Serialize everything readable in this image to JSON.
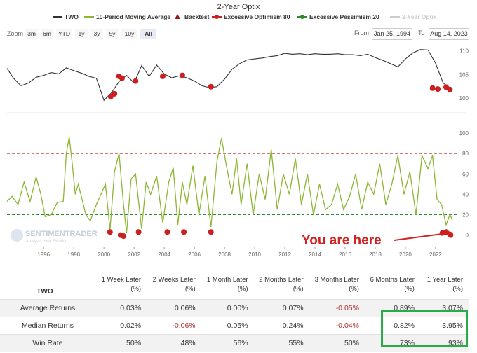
{
  "chart_data": [
    {
      "type": "line",
      "title": "2-Year Optix",
      "legend": [
        {
          "name": "TWO",
          "color": "#333333",
          "symbol": "line"
        },
        {
          "name": "10-Period Moving Average",
          "color": "#8cb634",
          "symbol": "line"
        },
        {
          "name": "Backtest",
          "color": "#8b1a1a",
          "symbol": "triangle"
        },
        {
          "name": "Excessive Optimism 80",
          "color": "#cc1f1f",
          "symbol": "line-dot"
        },
        {
          "name": "Excessive Pessimism 20",
          "color": "#2f8a2f",
          "symbol": "line-dot"
        },
        {
          "name": "2-Year Optix",
          "color": "#cccccc",
          "symbol": "line",
          "disabled": true
        }
      ],
      "legend_position": "top",
      "zoom_label": "Zoom",
      "zoom_buttons": [
        "3m",
        "6m",
        "YTD",
        "1y",
        "3y",
        "5y",
        "10y",
        "All"
      ],
      "zoom_selected": "All",
      "date_from_label": "From",
      "date_from": "Jan 25, 1994",
      "date_to_label": "To",
      "date_to": "Aug 14, 2023",
      "x_ticks": [
        "1996",
        "1998",
        "2000",
        "2002",
        "2004",
        "2006",
        "2008",
        "2010",
        "2012",
        "2014",
        "2016",
        "2018",
        "2020",
        "2022"
      ],
      "x_range": [
        1994.07,
        2023.62
      ],
      "price_panel": {
        "y_ticks": [
          100,
          105,
          110
        ],
        "ylim": [
          97,
          111
        ],
        "series": {
          "name": "TWO",
          "x": [
            1994.07,
            1994.5,
            1995.0,
            1995.5,
            1996.0,
            1996.5,
            1997.0,
            1997.5,
            1998.0,
            1998.5,
            1999.0,
            1999.5,
            2000.0,
            2000.5,
            2001.0,
            2001.5,
            2002.0,
            2002.5,
            2003.0,
            2003.5,
            2004.0,
            2004.5,
            2005.0,
            2005.5,
            2006.0,
            2006.5,
            2007.0,
            2007.5,
            2008.0,
            2008.5,
            2009.0,
            2009.5,
            2010.0,
            2010.5,
            2011.0,
            2011.5,
            2012.0,
            2012.5,
            2013.0,
            2013.5,
            2014.0,
            2014.5,
            2015.0,
            2015.5,
            2016.0,
            2016.5,
            2017.0,
            2017.5,
            2018.0,
            2018.5,
            2019.0,
            2019.5,
            2020.0,
            2020.5,
            2021.0,
            2021.5,
            2022.0,
            2022.5,
            2023.0,
            2023.62
          ],
          "y": [
            106.3,
            104.2,
            102.6,
            103.2,
            104.4,
            104.8,
            105.4,
            105.1,
            106.4,
            105.8,
            105.3,
            104.6,
            104.2,
            99.5,
            101.1,
            103.5,
            104.8,
            103.2,
            106.9,
            104.6,
            107.0,
            105.1,
            104.3,
            104.7,
            104.3,
            103.6,
            102.6,
            102.2,
            102.4,
            104.0,
            106.1,
            107.3,
            108.1,
            108.3,
            108.5,
            108.8,
            109.0,
            109.5,
            109.3,
            109.4,
            109.2,
            109.4,
            109.3,
            109.3,
            109.4,
            109.2,
            109.2,
            109.0,
            109.3,
            108.6,
            108.0,
            107.3,
            106.6,
            108.3,
            109.6,
            110.3,
            110.2,
            107.4,
            103.2,
            101.8
          ]
        },
        "backtest_signals": [
          {
            "x": 2000.95,
            "y": 100.3
          },
          {
            "x": 2001.2,
            "y": 100.9
          },
          {
            "x": 2001.5,
            "y": 104.6
          },
          {
            "x": 2001.7,
            "y": 104.2
          },
          {
            "x": 2002.6,
            "y": 103.6
          },
          {
            "x": 2004.4,
            "y": 104.6
          },
          {
            "x": 2005.7,
            "y": 104.8
          },
          {
            "x": 2007.6,
            "y": 102.4
          },
          {
            "x": 2022.3,
            "y": 102.1
          },
          {
            "x": 2022.65,
            "y": 101.9
          },
          {
            "x": 2023.2,
            "y": 102.3
          },
          {
            "x": 2023.45,
            "y": 101.8
          }
        ]
      },
      "optix_panel": {
        "y_ticks": [
          0,
          20,
          40,
          60,
          80,
          100
        ],
        "y_tick_labels": [
          "0",
          "20",
          "40",
          "60",
          "80",
          "100"
        ],
        "ylim": [
          -3,
          100
        ],
        "upper_threshold": 80,
        "lower_threshold": 20,
        "series": {
          "name": "10-Period Moving Average",
          "x": [
            1994.07,
            1994.4,
            1994.8,
            1995.2,
            1995.6,
            1996.0,
            1996.3,
            1996.6,
            1997.0,
            1997.4,
            1997.8,
            1998.0,
            1998.2,
            1998.4,
            1998.6,
            1998.8,
            1999.0,
            1999.3,
            1999.6,
            2000.0,
            2000.3,
            2000.6,
            2000.9,
            2001.2,
            2001.5,
            2001.8,
            2002.0,
            2002.3,
            2002.6,
            2003.0,
            2003.3,
            2003.6,
            2004.0,
            2004.4,
            2004.8,
            2005.1,
            2005.4,
            2005.7,
            2006.0,
            2006.4,
            2006.8,
            2007.2,
            2007.6,
            2008.0,
            2008.3,
            2008.6,
            2009.0,
            2009.3,
            2009.6,
            2010.0,
            2010.4,
            2010.8,
            2011.2,
            2011.6,
            2012.0,
            2012.4,
            2012.8,
            2013.2,
            2013.6,
            2014.0,
            2014.4,
            2014.8,
            2015.2,
            2015.6,
            2016.0,
            2016.4,
            2016.8,
            2017.2,
            2017.6,
            2018.0,
            2018.4,
            2018.8,
            2019.2,
            2019.6,
            2020.0,
            2020.4,
            2020.8,
            2021.2,
            2021.6,
            2022.0,
            2022.3,
            2022.6,
            2022.9,
            2023.2,
            2023.45,
            2023.62
          ],
          "y": [
            33,
            38,
            30,
            52,
            33,
            57,
            41,
            18,
            20,
            32,
            33,
            80,
            96,
            70,
            40,
            50,
            38,
            20,
            14,
            30,
            40,
            50,
            5,
            62,
            80,
            30,
            2,
            55,
            60,
            6,
            52,
            40,
            58,
            12,
            52,
            66,
            10,
            52,
            30,
            68,
            20,
            58,
            8,
            72,
            95,
            70,
            40,
            75,
            30,
            70,
            20,
            60,
            35,
            84,
            25,
            60,
            40,
            75,
            30,
            60,
            20,
            50,
            25,
            30,
            50,
            25,
            38,
            60,
            25,
            52,
            40,
            70,
            30,
            50,
            78,
            40,
            62,
            20,
            78,
            65,
            78,
            35,
            30,
            10,
            20,
            15
          ]
        },
        "lower_signals": [
          {
            "x": 2000.9,
            "y": 3
          },
          {
            "x": 2001.6,
            "y": 0
          },
          {
            "x": 2001.8,
            "y": -1
          },
          {
            "x": 2002.8,
            "y": 3
          },
          {
            "x": 2004.7,
            "y": 3
          },
          {
            "x": 2005.8,
            "y": 3
          },
          {
            "x": 2007.6,
            "y": 3
          },
          {
            "x": 2022.95,
            "y": 2
          },
          {
            "x": 2023.2,
            "y": 3
          },
          {
            "x": 2023.5,
            "y": 0
          }
        ],
        "annotation": "You are here",
        "watermark": [
          "SENTIMENTRADER",
          "Analysis over Emotion"
        ]
      }
    },
    {
      "type": "table",
      "row_header": "TWO",
      "columns": [
        "1 Week Later (%)",
        "2 Weeks Later (%)",
        "1 Month Later (%)",
        "2 Months Later (%)",
        "3 Months Later (%)",
        "6 Months Later (%)",
        "1 Year Later (%)"
      ],
      "rows": [
        {
          "label": "Average Returns",
          "values": [
            "0.03%",
            "0.06%",
            "0.00%",
            "0.07%",
            "-0.05%",
            "0.89%",
            "3.07%"
          ]
        },
        {
          "label": "Median Returns",
          "values": [
            "0.02%",
            "-0.06%",
            "0.05%",
            "0.24%",
            "-0.04%",
            "0.82%",
            "3.95%"
          ]
        },
        {
          "label": "Win Rate",
          "values": [
            "50%",
            "48%",
            "56%",
            "55%",
            "50%",
            "73%",
            "93%"
          ]
        }
      ]
    }
  ]
}
